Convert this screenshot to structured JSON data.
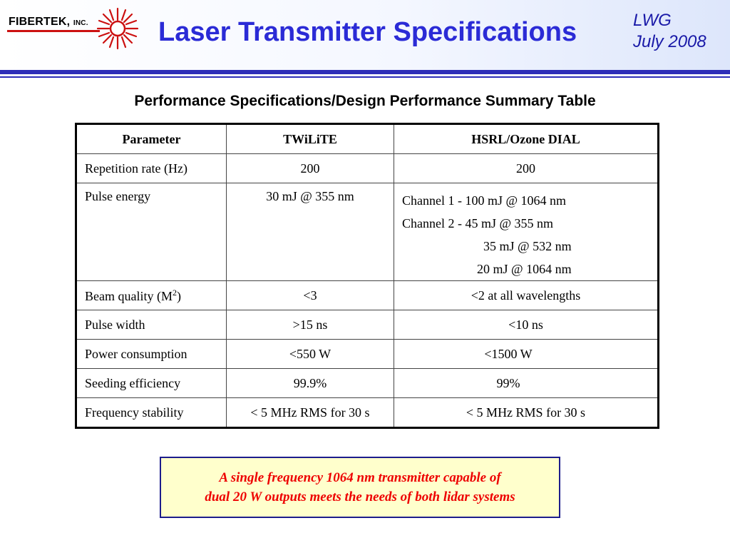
{
  "header": {
    "logo_name": "FIBERTEK,",
    "logo_suffix": "INC.",
    "title": "Laser Transmitter Specifications",
    "corner_line1": "LWG",
    "corner_line2": "July 2008"
  },
  "subtitle": "Performance Specifications/Design Performance Summary Table",
  "table": {
    "headers": [
      "Parameter",
      "TWiLiTE",
      "HSRL/Ozone DIAL"
    ],
    "rows": [
      {
        "param": "Repetition rate (Hz)",
        "twilite": "200",
        "hsrl": "200"
      },
      {
        "param": "Pulse energy",
        "twilite": "30 mJ @ 355 nm",
        "hsrl_lines": [
          "Channel 1 - 100 mJ @ 1064 nm",
          "Channel 2 - 45 mJ @ 355 nm",
          "35 mJ @ 532 nm",
          "20 mJ @ 1064 nm"
        ]
      },
      {
        "param_main": "Beam quality (M",
        "param_sup": "2",
        "param_end": ")",
        "twilite": "<3",
        "hsrl": "<2 at all wavelengths"
      },
      {
        "param": "Pulse width",
        "twilite": ">15 ns",
        "hsrl": "<10 ns"
      },
      {
        "param": "Power consumption",
        "twilite": "<550 W",
        "hsrl": "<1500 W"
      },
      {
        "param": "Seeding efficiency",
        "twilite": "99.9%",
        "hsrl": "99%"
      },
      {
        "param": "Frequency stability",
        "twilite": "< 5 MHz RMS for 30 s",
        "hsrl": "< 5 MHz RMS for 30 s"
      }
    ]
  },
  "callout": {
    "line1": "A single frequency 1064 nm transmitter capable of",
    "line2": "dual 20 W outputs meets the needs of both lidar systems"
  },
  "colors": {
    "title": "#2b2bd6",
    "rule": "#2d2db8",
    "callout_bg": "#ffffcc",
    "callout_text": "#ee0000",
    "logo_accent": "#cc1111"
  },
  "icons": {
    "logo": "starburst-logo-icon"
  }
}
